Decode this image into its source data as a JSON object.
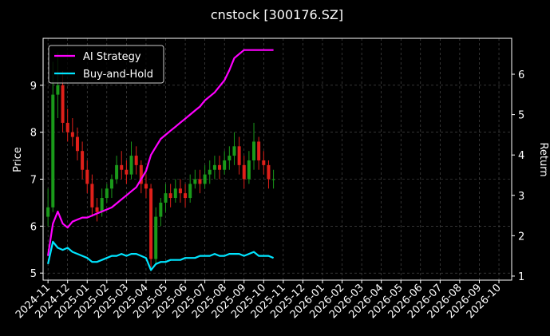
{
  "chart_data": {
    "type": "candlestick",
    "title": "cnstock [300176.SZ]",
    "ylabel": "Price",
    "y2label": "Return",
    "x": [
      0,
      0.25,
      0.5,
      0.75,
      1,
      1.25,
      1.5,
      1.75,
      2,
      2.25,
      2.5,
      2.75,
      3,
      3.25,
      3.5,
      3.75,
      4,
      4.25,
      4.5,
      4.75,
      5,
      5.25,
      5.5,
      5.75,
      6,
      6.25,
      6.5,
      6.75,
      7,
      7.25,
      7.5,
      7.75,
      8,
      8.25,
      8.5,
      8.75,
      9,
      9.25,
      9.5,
      9.75,
      10,
      10.25,
      10.5,
      10.75,
      11,
      11.25,
      11.5
    ],
    "open": [
      6.2,
      6.4,
      8.8,
      9.0,
      8.2,
      8.0,
      7.9,
      7.6,
      7.2,
      6.9,
      6.4,
      6.3,
      6.6,
      6.8,
      7.0,
      7.3,
      7.2,
      7.1,
      7.5,
      7.3,
      6.9,
      6.8,
      5.3,
      6.2,
      6.5,
      6.7,
      6.6,
      6.8,
      6.7,
      6.6,
      6.9,
      7.0,
      6.9,
      7.1,
      7.2,
      7.3,
      7.2,
      7.4,
      7.5,
      7.7,
      7.3,
      7.0,
      7.4,
      7.8,
      7.4,
      7.3,
      7.0
    ],
    "high": [
      6.8,
      9.5,
      9.7,
      9.3,
      8.5,
      8.3,
      8.1,
      7.8,
      7.4,
      7.1,
      6.6,
      6.8,
      6.9,
      7.1,
      7.5,
      7.6,
      7.4,
      7.8,
      7.7,
      7.4,
      7.1,
      6.9,
      6.4,
      6.6,
      6.9,
      6.9,
      7.0,
      7.0,
      6.9,
      7.1,
      7.2,
      7.2,
      7.3,
      7.4,
      7.5,
      7.5,
      7.6,
      7.7,
      8.0,
      7.9,
      7.5,
      7.6,
      8.2,
      7.9,
      7.6,
      7.4,
      7.2
    ],
    "low": [
      6.0,
      6.3,
      8.3,
      8.0,
      7.8,
      7.7,
      7.4,
      7.0,
      6.7,
      6.2,
      6.1,
      6.2,
      6.5,
      6.6,
      6.9,
      7.0,
      6.9,
      7.0,
      7.1,
      6.7,
      6.6,
      5.1,
      5.2,
      6.0,
      6.3,
      6.4,
      6.5,
      6.5,
      6.4,
      6.5,
      6.8,
      6.7,
      6.8,
      6.9,
      7.0,
      7.0,
      7.1,
      7.2,
      7.3,
      7.1,
      6.8,
      6.9,
      7.2,
      7.2,
      7.1,
      6.8,
      6.8
    ],
    "close": [
      6.4,
      8.8,
      9.0,
      8.2,
      8.0,
      7.9,
      7.6,
      7.2,
      6.9,
      6.4,
      6.3,
      6.6,
      6.8,
      7.0,
      7.3,
      7.2,
      7.1,
      7.5,
      7.3,
      6.9,
      6.8,
      5.3,
      6.2,
      6.5,
      6.7,
      6.6,
      6.8,
      6.7,
      6.6,
      6.9,
      7.0,
      6.9,
      7.1,
      7.2,
      7.3,
      7.2,
      7.4,
      7.5,
      7.7,
      7.3,
      7.0,
      7.4,
      7.8,
      7.4,
      7.3,
      7.0,
      7.0
    ],
    "up_color": "#1a9a1a",
    "down_color": "#e0201a",
    "series": [
      {
        "name": "AI Strategy",
        "color": "#ff00ff",
        "axis": "y2",
        "values": [
          1.5,
          2.3,
          2.6,
          2.3,
          2.2,
          2.35,
          2.4,
          2.45,
          2.45,
          2.5,
          2.55,
          2.6,
          2.65,
          2.7,
          2.8,
          2.9,
          3.0,
          3.1,
          3.2,
          3.4,
          3.6,
          4.0,
          4.2,
          4.4,
          4.5,
          4.6,
          4.7,
          4.8,
          4.9,
          5.0,
          5.1,
          5.2,
          5.35,
          5.45,
          5.55,
          5.7,
          5.85,
          6.1,
          6.4,
          6.5,
          6.6,
          6.6,
          6.6,
          6.6,
          6.6,
          6.6,
          6.6
        ]
      },
      {
        "name": "Buy-and-Hold",
        "color": "#00e5ff",
        "axis": "y2",
        "values": [
          1.3,
          1.85,
          1.7,
          1.65,
          1.7,
          1.6,
          1.55,
          1.5,
          1.45,
          1.35,
          1.35,
          1.4,
          1.45,
          1.5,
          1.5,
          1.55,
          1.5,
          1.55,
          1.55,
          1.5,
          1.45,
          1.15,
          1.3,
          1.35,
          1.35,
          1.4,
          1.4,
          1.4,
          1.45,
          1.45,
          1.45,
          1.5,
          1.5,
          1.5,
          1.55,
          1.5,
          1.5,
          1.55,
          1.55,
          1.55,
          1.5,
          1.55,
          1.6,
          1.5,
          1.5,
          1.5,
          1.45
        ]
      }
    ],
    "xlim": [
      -0.25,
      23.65
    ],
    "xticks": [
      {
        "value": 0,
        "label": "2024-11"
      },
      {
        "value": 1,
        "label": "2024-12"
      },
      {
        "value": 2,
        "label": "2025-01"
      },
      {
        "value": 3,
        "label": "2025-02"
      },
      {
        "value": 4,
        "label": "2025-03"
      },
      {
        "value": 5,
        "label": "2025-04"
      },
      {
        "value": 6,
        "label": "2025-05"
      },
      {
        "value": 7,
        "label": "2025-06"
      },
      {
        "value": 8,
        "label": "2025-07"
      },
      {
        "value": 9,
        "label": "2025-08"
      },
      {
        "value": 10,
        "label": "2025-09"
      },
      {
        "value": 11,
        "label": "2025-10"
      },
      {
        "value": 12,
        "label": "2025-11"
      },
      {
        "value": 13,
        "label": "2025-12"
      },
      {
        "value": 14,
        "label": "2026-01"
      },
      {
        "value": 15,
        "label": "2026-02"
      },
      {
        "value": 16,
        "label": "2026-03"
      },
      {
        "value": 17,
        "label": "2026-04"
      },
      {
        "value": 18,
        "label": "2026-05"
      },
      {
        "value": 19,
        "label": "2026-06"
      },
      {
        "value": 20,
        "label": "2026-07"
      },
      {
        "value": 21,
        "label": "2026-08"
      },
      {
        "value": 22,
        "label": "2026-09"
      },
      {
        "value": 23,
        "label": "2026-10"
      }
    ],
    "ylim": [
      4.85,
      10.0
    ],
    "yticks": [
      5,
      6,
      7,
      8,
      9
    ],
    "y2lim": [
      0.9,
      6.89
    ],
    "y2ticks": [
      1,
      2,
      3,
      4,
      5,
      6
    ],
    "grid": true,
    "legend": "upper left"
  }
}
